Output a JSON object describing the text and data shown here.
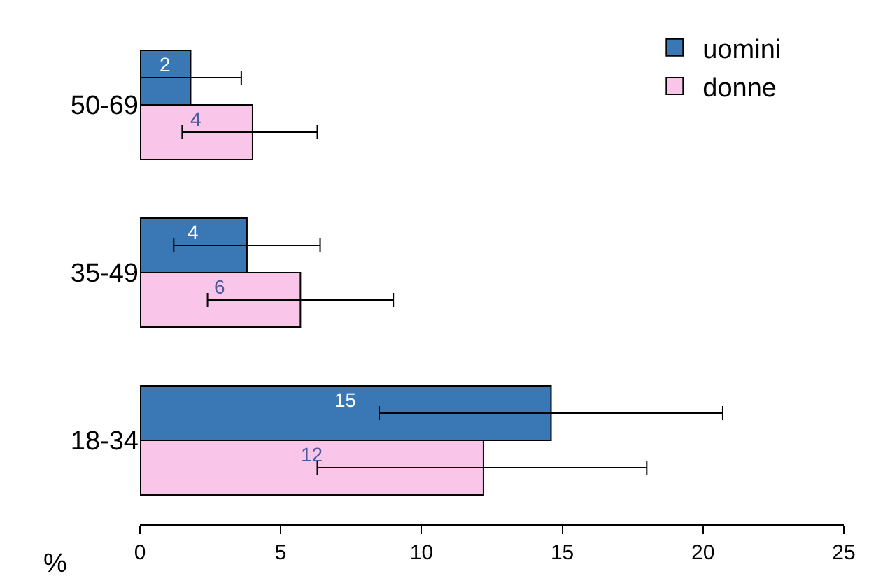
{
  "chart_data": {
    "type": "bar",
    "orientation": "horizontal",
    "xlabel": "%",
    "categories": [
      "50-69",
      "35-49",
      "18-34"
    ],
    "series": [
      {
        "name": "uomini",
        "color": "#3a78b5",
        "values": [
          1.8,
          3.8,
          14.6
        ],
        "value_labels": [
          "2",
          "4",
          "15"
        ],
        "errors": [
          [
            0,
            3.6
          ],
          [
            1.2,
            6.4
          ],
          [
            8.5,
            20.7
          ]
        ]
      },
      {
        "name": "donne",
        "color": "#f9c6ea",
        "values": [
          4.0,
          5.7,
          12.2
        ],
        "value_labels": [
          "4",
          "6",
          "12"
        ],
        "errors": [
          [
            1.5,
            6.3
          ],
          [
            2.4,
            9.0
          ],
          [
            6.3,
            18.0
          ]
        ]
      }
    ],
    "xlim": [
      0,
      25
    ],
    "xticks": [
      0,
      5,
      10,
      15,
      20,
      25
    ],
    "legend": "top right"
  }
}
